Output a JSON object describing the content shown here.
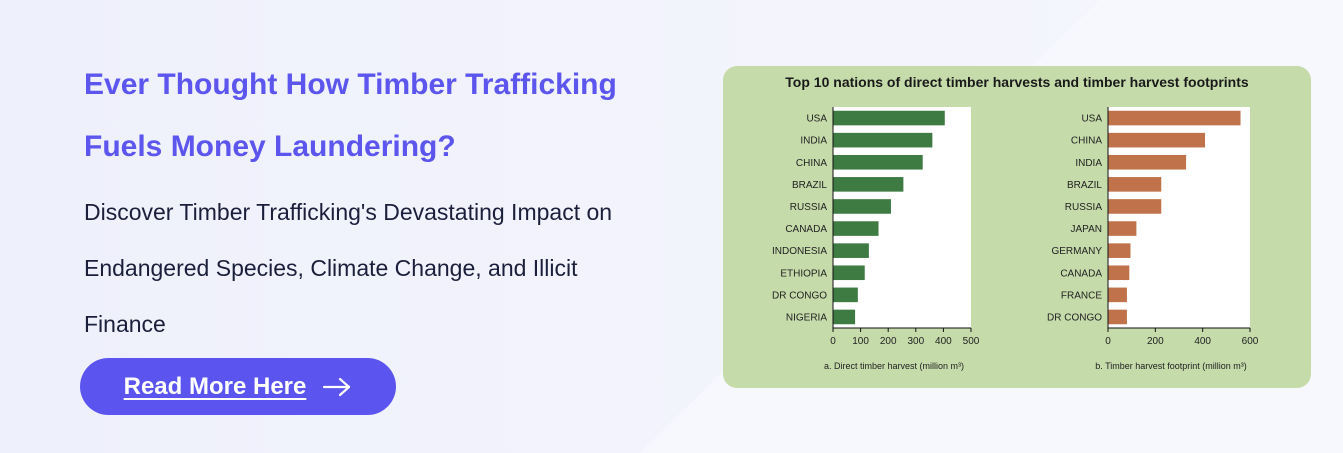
{
  "headline": {
    "line1": "Ever Thought How Timber Trafficking",
    "line2": "Fuels Money Laundering?"
  },
  "subtext": {
    "line1": "Discover Timber Trafficking's Devastating Impact on",
    "line2": "Endangered Species, Climate Change, and Illicit",
    "line3": "Finance"
  },
  "cta": {
    "label": "Read More Here",
    "icon": "arrow-right-icon"
  },
  "colors": {
    "accent": "#5b54ee",
    "headline": "#5c55ee",
    "text": "#1b1f3b",
    "card": "#c5dbaa",
    "bar_a": "#3e7b43",
    "bar_b": "#c0734a"
  },
  "chart_data": [
    {
      "type": "bar",
      "orientation": "horizontal",
      "title": "Top 10 nations of direct timber harvests and timber harvest footprints",
      "xlabel": "a. Direct timber harvest (million m³)",
      "categories": [
        "USA",
        "INDIA",
        "CHINA",
        "BRAZIL",
        "RUSSIA",
        "CANADA",
        "INDONESIA",
        "ETHIOPIA",
        "DR CONGO",
        "NIGERIA"
      ],
      "values": [
        405,
        360,
        325,
        255,
        210,
        165,
        130,
        115,
        90,
        80
      ],
      "xlim": [
        0,
        500
      ],
      "xticks": [
        "0",
        "100",
        "200",
        "300",
        "400",
        "500"
      ],
      "color": "#3e7b43"
    },
    {
      "type": "bar",
      "orientation": "horizontal",
      "xlabel": "b. Timber harvest footprint (million m³)",
      "categories": [
        "USA",
        "CHINA",
        "INDIA",
        "BRAZIL",
        "RUSSIA",
        "JAPAN",
        "GERMANY",
        "CANADA",
        "FRANCE",
        "DR CONGO"
      ],
      "values": [
        560,
        410,
        330,
        225,
        225,
        120,
        95,
        90,
        80,
        80
      ],
      "xlim": [
        0,
        600
      ],
      "xticks": [
        "0",
        "200",
        "400",
        "600"
      ],
      "color": "#c0734a"
    }
  ]
}
